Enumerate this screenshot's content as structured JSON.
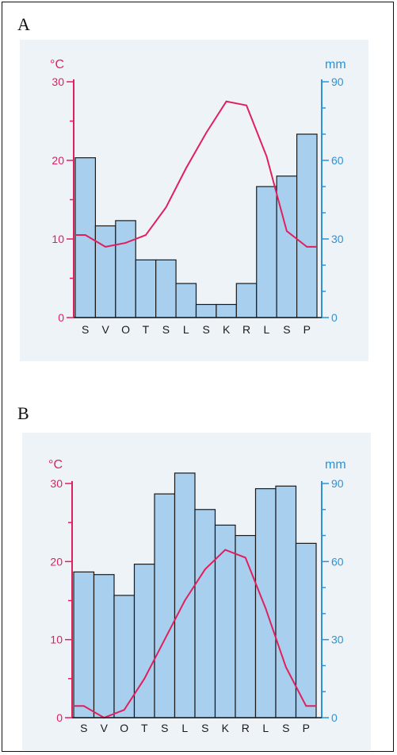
{
  "panels": [
    {
      "label": "A"
    },
    {
      "label": "B"
    }
  ],
  "chart_data": [
    {
      "type": "bar",
      "categories": [
        "S",
        "V",
        "O",
        "T",
        "S",
        "L",
        "S",
        "K",
        "R",
        "L",
        "S",
        "P"
      ],
      "series": [
        {
          "kind": "bar",
          "axis": "right",
          "values": [
            61,
            35,
            37,
            22,
            22,
            13,
            5,
            5,
            13,
            50,
            54,
            70
          ]
        },
        {
          "kind": "line",
          "axis": "left",
          "values": [
            10.5,
            9,
            9.5,
            10.5,
            14,
            19,
            23.5,
            27.5,
            27,
            20.5,
            11,
            9
          ]
        }
      ],
      "left_axis": {
        "unit": "°C",
        "ticks": [
          "0",
          "10",
          "20",
          "30"
        ],
        "ylim": [
          0,
          30
        ]
      },
      "right_axis": {
        "unit": "mm",
        "ticks": [
          "0",
          "30",
          "60",
          "90"
        ],
        "ylim": [
          0,
          90
        ]
      },
      "colors": {
        "bar": "#a9cfee",
        "line": "#e0205e",
        "left_axis": "#e0205e",
        "right_axis": "#2b93d6"
      }
    },
    {
      "type": "bar",
      "categories": [
        "S",
        "V",
        "O",
        "T",
        "S",
        "L",
        "S",
        "K",
        "R",
        "L",
        "S",
        "P"
      ],
      "series": [
        {
          "kind": "bar",
          "axis": "right",
          "values": [
            56,
            55,
            47,
            59,
            86,
            94,
            80,
            74,
            70,
            88,
            89,
            67
          ]
        },
        {
          "kind": "line",
          "axis": "left",
          "values": [
            1.5,
            0,
            1,
            5,
            10,
            15,
            19,
            21.5,
            20.5,
            14,
            6.5,
            1.5
          ]
        }
      ],
      "left_axis": {
        "unit": "°C",
        "ticks": [
          "0",
          "10",
          "20",
          "30"
        ],
        "ylim": [
          0,
          30
        ]
      },
      "right_axis": {
        "unit": "mm",
        "ticks": [
          "0",
          "30",
          "60",
          "90"
        ],
        "ylim": [
          0,
          90
        ]
      },
      "colors": {
        "bar": "#a9cfee",
        "line": "#e0205e",
        "left_axis": "#e0205e",
        "right_axis": "#2b93d6"
      }
    }
  ]
}
